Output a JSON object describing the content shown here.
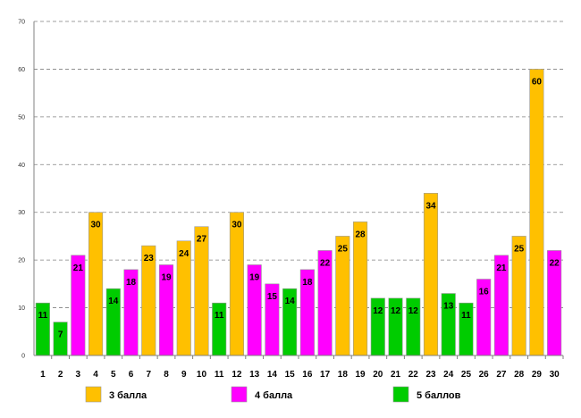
{
  "chart_data": {
    "type": "bar",
    "title": "",
    "xlabel": "",
    "ylabel": "",
    "ylim": [
      0,
      70
    ],
    "yticks": [
      0,
      10,
      20,
      30,
      40,
      50,
      60,
      70
    ],
    "grid": true,
    "legend_position": "bottom",
    "categories": [
      "1",
      "2",
      "3",
      "4",
      "5",
      "6",
      "7",
      "8",
      "9",
      "10",
      "11",
      "12",
      "13",
      "14",
      "15",
      "16",
      "17",
      "18",
      "19",
      "20",
      "21",
      "22",
      "23",
      "24",
      "25",
      "26",
      "27",
      "28",
      "29",
      "30"
    ],
    "values": [
      11,
      7,
      21,
      30,
      14,
      18,
      23,
      19,
      24,
      27,
      11,
      30,
      19,
      15,
      14,
      18,
      22,
      25,
      28,
      12,
      12,
      12,
      34,
      13,
      11,
      16,
      21,
      25,
      60,
      22
    ],
    "groups": [
      2,
      2,
      1,
      0,
      2,
      1,
      0,
      1,
      0,
      0,
      2,
      0,
      1,
      1,
      2,
      1,
      1,
      0,
      0,
      2,
      2,
      2,
      0,
      2,
      2,
      1,
      1,
      0,
      0,
      1
    ],
    "legend": [
      {
        "name": "3 балла",
        "color": "#FFC000"
      },
      {
        "name": "4 балла",
        "color": "#FF00FF"
      },
      {
        "name": "5 баллов",
        "color": "#00CC00"
      }
    ]
  }
}
